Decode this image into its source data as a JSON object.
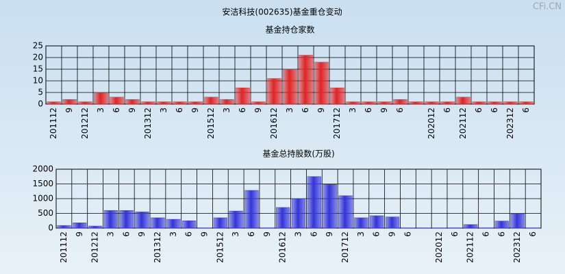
{
  "title": "安洁科技(002635)基金重仓变动",
  "watermark": "CFi.CN",
  "chart_data": [
    {
      "type": "bar",
      "title": "基金持仓家数",
      "categories": [
        "201112",
        "9",
        "201212",
        "3",
        "6",
        "9",
        "201312",
        "3",
        "6",
        "9",
        "201512",
        "3",
        "6",
        "9",
        "201612",
        "3",
        "6",
        "9",
        "201712",
        "3",
        "6",
        "9",
        "6",
        null,
        "202012",
        "6",
        "202112",
        "6",
        "6",
        "202312",
        "6"
      ],
      "values": [
        1,
        2,
        1,
        5,
        3,
        2,
        1,
        1,
        1,
        1,
        3,
        2,
        7,
        1,
        11,
        15,
        21,
        18,
        7,
        1,
        1,
        1,
        2,
        1,
        1,
        1,
        3,
        1,
        1,
        1,
        1
      ],
      "color": "#e02424",
      "ylim": [
        0,
        25
      ],
      "yticks": [
        0,
        5,
        10,
        15,
        20,
        25
      ],
      "grid": true
    },
    {
      "type": "bar",
      "title": "基金总持股数(万股)",
      "categories": [
        "201112",
        "9",
        "201212",
        "3",
        "6",
        "9",
        "201312",
        "3",
        "6",
        "9",
        "201512",
        "3",
        "6",
        "9",
        "201612",
        "3",
        "6",
        "9",
        "201712",
        "3",
        "6",
        "9",
        "6",
        null,
        "202012",
        "6",
        "202112",
        "6",
        "6",
        "202312",
        "6"
      ],
      "values": [
        90,
        180,
        70,
        600,
        600,
        550,
        350,
        300,
        250,
        10,
        350,
        580,
        1280,
        10,
        700,
        1000,
        1750,
        1480,
        1100,
        350,
        420,
        380,
        10,
        10,
        10,
        10,
        120,
        10,
        240,
        480,
        10
      ],
      "color": "#3434d8",
      "ylim": [
        0,
        2000
      ],
      "yticks": [
        0,
        500,
        1000,
        1500,
        2000
      ],
      "grid": true
    }
  ]
}
